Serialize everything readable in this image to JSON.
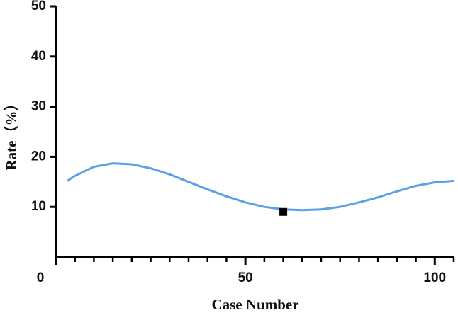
{
  "chart_data": {
    "type": "line",
    "x_label": "Case Number",
    "y_label": "Rate（%）",
    "xlim": [
      0,
      105
    ],
    "xticks": [
      0,
      50,
      100
    ],
    "xminor_ticks": [
      5,
      10,
      15,
      20,
      25,
      30,
      35,
      40,
      45,
      55,
      60,
      65,
      70,
      75,
      80,
      85,
      90,
      95,
      105
    ],
    "ylim": [
      0,
      50
    ],
    "yticks": [
      10,
      20,
      30,
      40,
      50
    ],
    "grid": false,
    "series": [
      {
        "kind": "line",
        "color": "#5ba0e8",
        "x": [
          3,
          5,
          10,
          15,
          20,
          25,
          30,
          35,
          40,
          45,
          50,
          55,
          60,
          65,
          70,
          75,
          80,
          85,
          90,
          95,
          100,
          105
        ],
        "values": [
          15.2,
          16.2,
          18.0,
          18.7,
          18.5,
          17.7,
          16.5,
          15.0,
          13.5,
          12.1,
          10.9,
          10.0,
          9.5,
          9.35,
          9.5,
          10.0,
          10.9,
          11.9,
          13.1,
          14.2,
          14.9,
          15.2
        ]
      },
      {
        "kind": "scatter",
        "color": "#000000",
        "x": [
          60
        ],
        "values": [
          9
        ]
      }
    ]
  }
}
